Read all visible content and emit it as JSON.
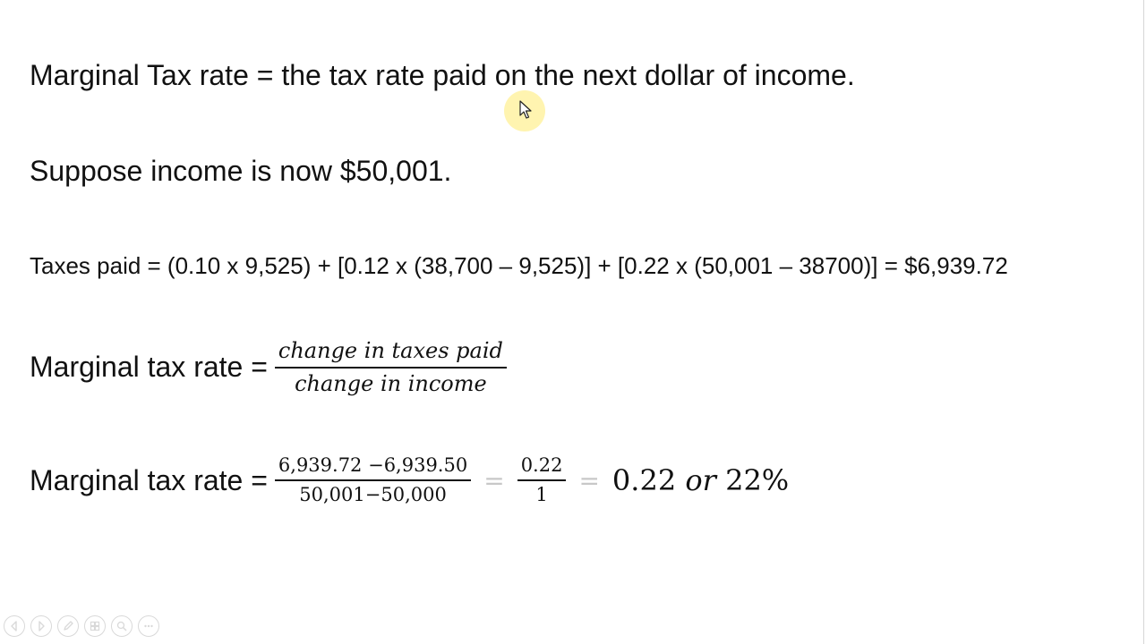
{
  "slide": {
    "line1": "Marginal Tax rate = the tax rate paid on the next dollar of income.",
    "line2": "Suppose income is now $50,001.",
    "line3": "Taxes paid = (0.10 x 9,525) + [0.12 x (38,700 – 9,525)] + [0.22 x (50,001 – 38700)] = $6,939.72",
    "eq1": {
      "label": "Marginal tax rate =",
      "numerator": "change in taxes paid",
      "denominator": "change in income"
    },
    "eq2": {
      "label": "Marginal tax rate =",
      "numerator": "6,939.72 −6,939.50",
      "denominator": "50,001−50,000",
      "eq_sign": "=",
      "numerator2": "0.22",
      "denominator2": "1",
      "result_value": "0.22",
      "result_or": "or",
      "result_percent": "22%"
    }
  },
  "toolbar": {
    "icons": [
      "previous-icon",
      "next-icon",
      "pen-icon",
      "slides-grid-icon",
      "zoom-icon",
      "more-icon"
    ]
  },
  "colors": {
    "background": "#ffffff",
    "text": "#111111",
    "cursor_highlight": "#fff096",
    "toolbar_icon": "#d9d9d9"
  }
}
